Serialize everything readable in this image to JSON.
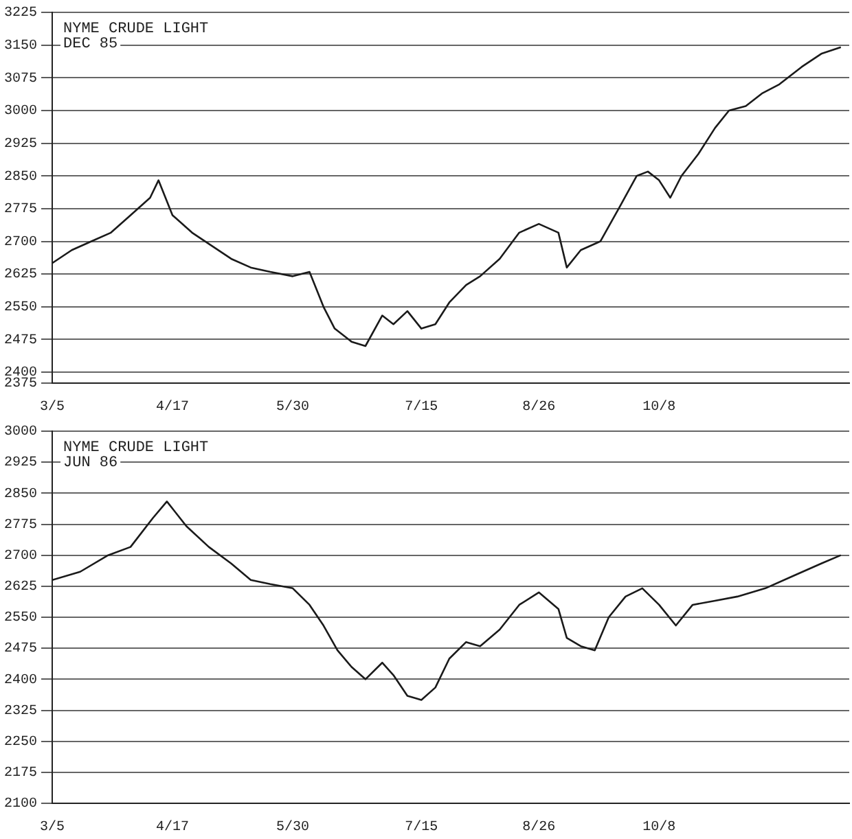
{
  "chart_data": [
    {
      "type": "line",
      "title": "NYME CRUDE LIGHT",
      "subtitle": "DEC 85",
      "x": [
        "--03-05",
        "--03-12",
        "--03-19",
        "--03-26",
        "--04-02",
        "--04-09",
        "--04-12",
        "--04-17",
        "--04-24",
        "--05-01",
        "--05-08",
        "--05-15",
        "--05-22",
        "--05-30",
        "--06-05",
        "--06-10",
        "--06-14",
        "--06-20",
        "--06-25",
        "--07-01",
        "--07-05",
        "--07-10",
        "--07-15",
        "--07-20",
        "--07-25",
        "--07-31",
        "--08-05",
        "--08-12",
        "--08-19",
        "--08-26",
        "--09-02",
        "--09-05",
        "--09-10",
        "--09-17",
        "--09-24",
        "--09-30",
        "--10-04",
        "--10-08",
        "--10-12",
        "--10-16",
        "--10-22",
        "--10-28",
        "--11-02",
        "--11-08",
        "--11-14",
        "--11-20",
        "--11-28",
        "--12-05",
        "--12-12"
      ],
      "series": [
        {
          "color": "#1a1a1a",
          "values": [
            2650,
            2680,
            2700,
            2720,
            2760,
            2800,
            2840,
            2760,
            2720,
            2690,
            2660,
            2640,
            2630,
            2620,
            2630,
            2550,
            2500,
            2470,
            2460,
            2530,
            2510,
            2540,
            2500,
            2510,
            2560,
            2600,
            2620,
            2660,
            2720,
            2740,
            2720,
            2640,
            2680,
            2700,
            2780,
            2850,
            2860,
            2840,
            2800,
            2850,
            2900,
            2960,
            3000,
            3010,
            3040,
            3060,
            3100,
            3130,
            3145
          ]
        }
      ],
      "xlim": [
        "--03-05",
        "--12-15"
      ],
      "xticks": [
        {
          "value": "--03-05",
          "label": "3/5"
        },
        {
          "value": "--04-17",
          "label": "4/17"
        },
        {
          "value": "--05-30",
          "label": "5/30"
        },
        {
          "value": "--07-15",
          "label": "7/15"
        },
        {
          "value": "--08-26",
          "label": "8/26"
        },
        {
          "value": "--10-08",
          "label": "10/8"
        }
      ],
      "ylim": [
        2375,
        3225
      ],
      "yticks": [
        2375,
        2400,
        2475,
        2550,
        2625,
        2700,
        2775,
        2850,
        2925,
        3000,
        3075,
        3150,
        3225
      ],
      "grid": "y",
      "marker": "none",
      "line_style": "solid",
      "legend": false
    },
    {
      "type": "line",
      "title": "NYME CRUDE LIGHT",
      "subtitle": "JUN 86",
      "x": [
        "--03-05",
        "--03-15",
        "--03-25",
        "--04-02",
        "--04-10",
        "--04-15",
        "--04-22",
        "--04-30",
        "--05-08",
        "--05-15",
        "--05-22",
        "--05-30",
        "--06-05",
        "--06-10",
        "--06-15",
        "--06-20",
        "--06-25",
        "--07-01",
        "--07-05",
        "--07-10",
        "--07-15",
        "--07-20",
        "--07-25",
        "--07-31",
        "--08-05",
        "--08-12",
        "--08-19",
        "--08-26",
        "--09-02",
        "--09-05",
        "--09-10",
        "--09-15",
        "--09-20",
        "--09-26",
        "--10-02",
        "--10-08",
        "--10-14",
        "--10-20",
        "--10-28",
        "--11-05",
        "--11-15",
        "--11-25",
        "--12-05",
        "--12-12"
      ],
      "series": [
        {
          "color": "#1a1a1a",
          "values": [
            2640,
            2660,
            2700,
            2720,
            2790,
            2830,
            2770,
            2720,
            2680,
            2640,
            2630,
            2620,
            2580,
            2530,
            2470,
            2430,
            2400,
            2440,
            2410,
            2360,
            2350,
            2380,
            2450,
            2490,
            2480,
            2520,
            2580,
            2610,
            2570,
            2500,
            2480,
            2470,
            2550,
            2600,
            2620,
            2580,
            2530,
            2580,
            2590,
            2600,
            2620,
            2650,
            2680,
            2700
          ]
        }
      ],
      "xlim": [
        "--03-05",
        "--12-15"
      ],
      "xticks": [
        {
          "value": "--03-05",
          "label": "3/5"
        },
        {
          "value": "--04-17",
          "label": "4/17"
        },
        {
          "value": "--05-30",
          "label": "5/30"
        },
        {
          "value": "--07-15",
          "label": "7/15"
        },
        {
          "value": "--08-26",
          "label": "8/26"
        },
        {
          "value": "--10-08",
          "label": "10/8"
        }
      ],
      "ylim": [
        2100,
        3000
      ],
      "yticks": [
        2100,
        2175,
        2250,
        2325,
        2400,
        2475,
        2550,
        2625,
        2700,
        2775,
        2850,
        2925,
        3000
      ],
      "grid": "y",
      "marker": "none",
      "line_style": "solid",
      "legend": false
    }
  ]
}
